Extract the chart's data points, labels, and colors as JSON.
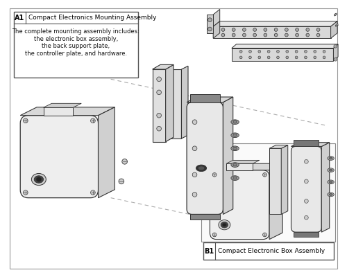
{
  "bg": "#ffffff",
  "lc": "#333333",
  "fc_light": "#f5f5f5",
  "fc_mid": "#e8e8e8",
  "fc_dark": "#d0d0d0",
  "fc_darker": "#b8b8b8",
  "title_A1": "A1",
  "label_A1": "Compact Electronics Mounting Assembly",
  "desc_A1": "The complete mounting assembly includes:\nthe electronic box assembly,\nthe back support plate,\nthe controller plate, and hardware.",
  "title_B1": "B1",
  "label_B1": "Compact Electronic Box Assembly"
}
